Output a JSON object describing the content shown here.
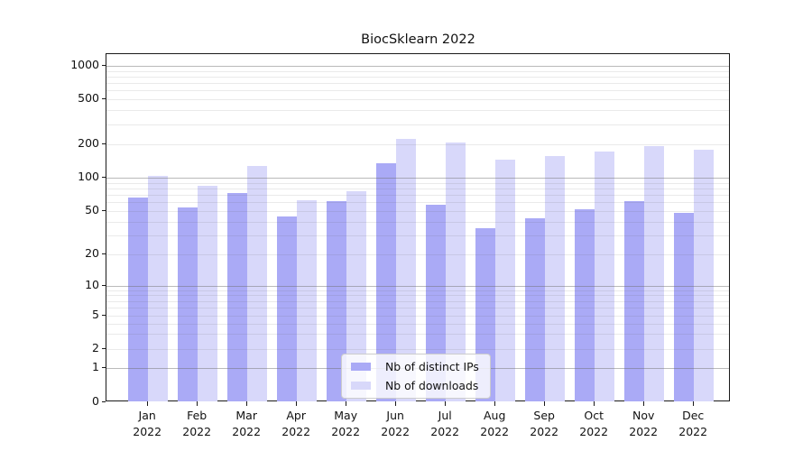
{
  "chart_data": {
    "type": "bar",
    "title": "BiocSklearn 2022",
    "categories": [
      "Jan\n2022",
      "Feb\n2022",
      "Mar\n2022",
      "Apr\n2022",
      "May\n2022",
      "Jun\n2022",
      "Jul\n2022",
      "Aug\n2022",
      "Sep\n2022",
      "Oct\n2022",
      "Nov\n2022",
      "Dec\n2022"
    ],
    "series": [
      {
        "name": "Nb of distinct IPs",
        "color": "#aaaaf6",
        "values": [
          66,
          54,
          73,
          45,
          62,
          135,
          57,
          35,
          43,
          52,
          62,
          48
        ]
      },
      {
        "name": "Nb of downloads",
        "color": "#d8d8fa",
        "values": [
          104,
          84,
          128,
          63,
          75,
          220,
          205,
          145,
          155,
          170,
          190,
          178
        ]
      }
    ],
    "xlabel": "",
    "ylabel": "",
    "yscale": "symlog",
    "y_ticks": [
      0,
      1,
      2,
      5,
      10,
      20,
      50,
      100,
      200,
      500,
      1000
    ],
    "ylim": [
      0,
      1000
    ],
    "grid": true,
    "legend_position": "lower center"
  }
}
